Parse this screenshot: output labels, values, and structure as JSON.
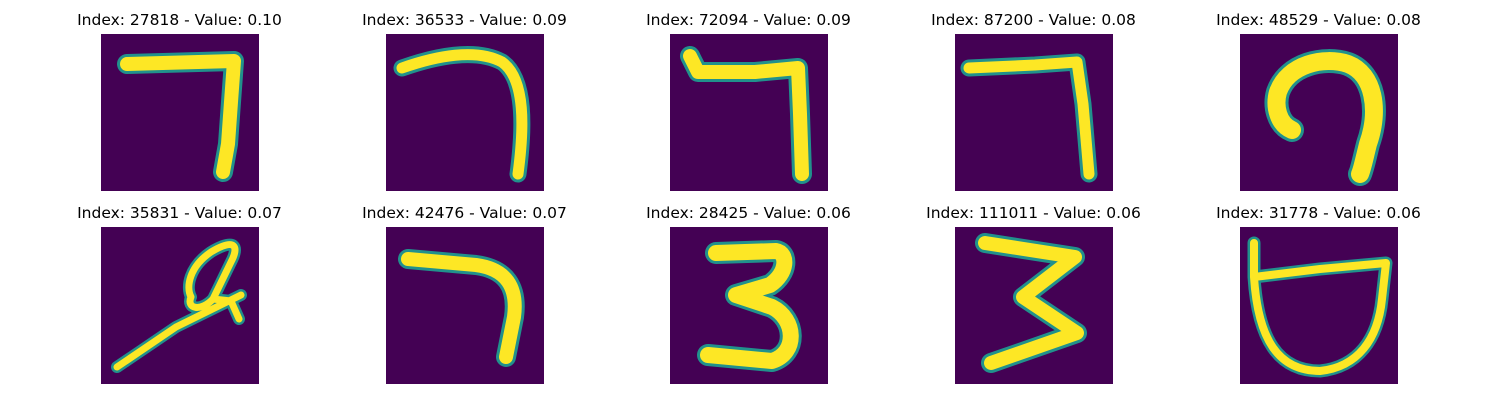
{
  "colors": {
    "background": "#440154",
    "stroke": "#fde725",
    "edge": "#21918c"
  },
  "panels": [
    {
      "title": "Index: 27818 - Value: 0.10",
      "glyph": "seven-like-stroke"
    },
    {
      "title": "Index: 36533 - Value: 0.09",
      "glyph": "hook-stroke"
    },
    {
      "title": "Index: 72094 - Value: 0.09",
      "glyph": "seven-like-stroke"
    },
    {
      "title": "Index: 87200 - Value: 0.08",
      "glyph": "seven-like-stroke"
    },
    {
      "title": "Index: 48529 - Value: 0.08",
      "glyph": "curl-stroke"
    },
    {
      "title": "Index: 35831 - Value: 0.07",
      "glyph": "looped-diagonal-stroke"
    },
    {
      "title": "Index: 42476 - Value: 0.07",
      "glyph": "hook-stroke"
    },
    {
      "title": "Index: 28425 - Value: 0.06",
      "glyph": "digit-three"
    },
    {
      "title": "Index: 111011 - Value: 0.06",
      "glyph": "digit-three"
    },
    {
      "title": "Index: 31778 - Value: 0.06",
      "glyph": "cup-stroke"
    }
  ]
}
